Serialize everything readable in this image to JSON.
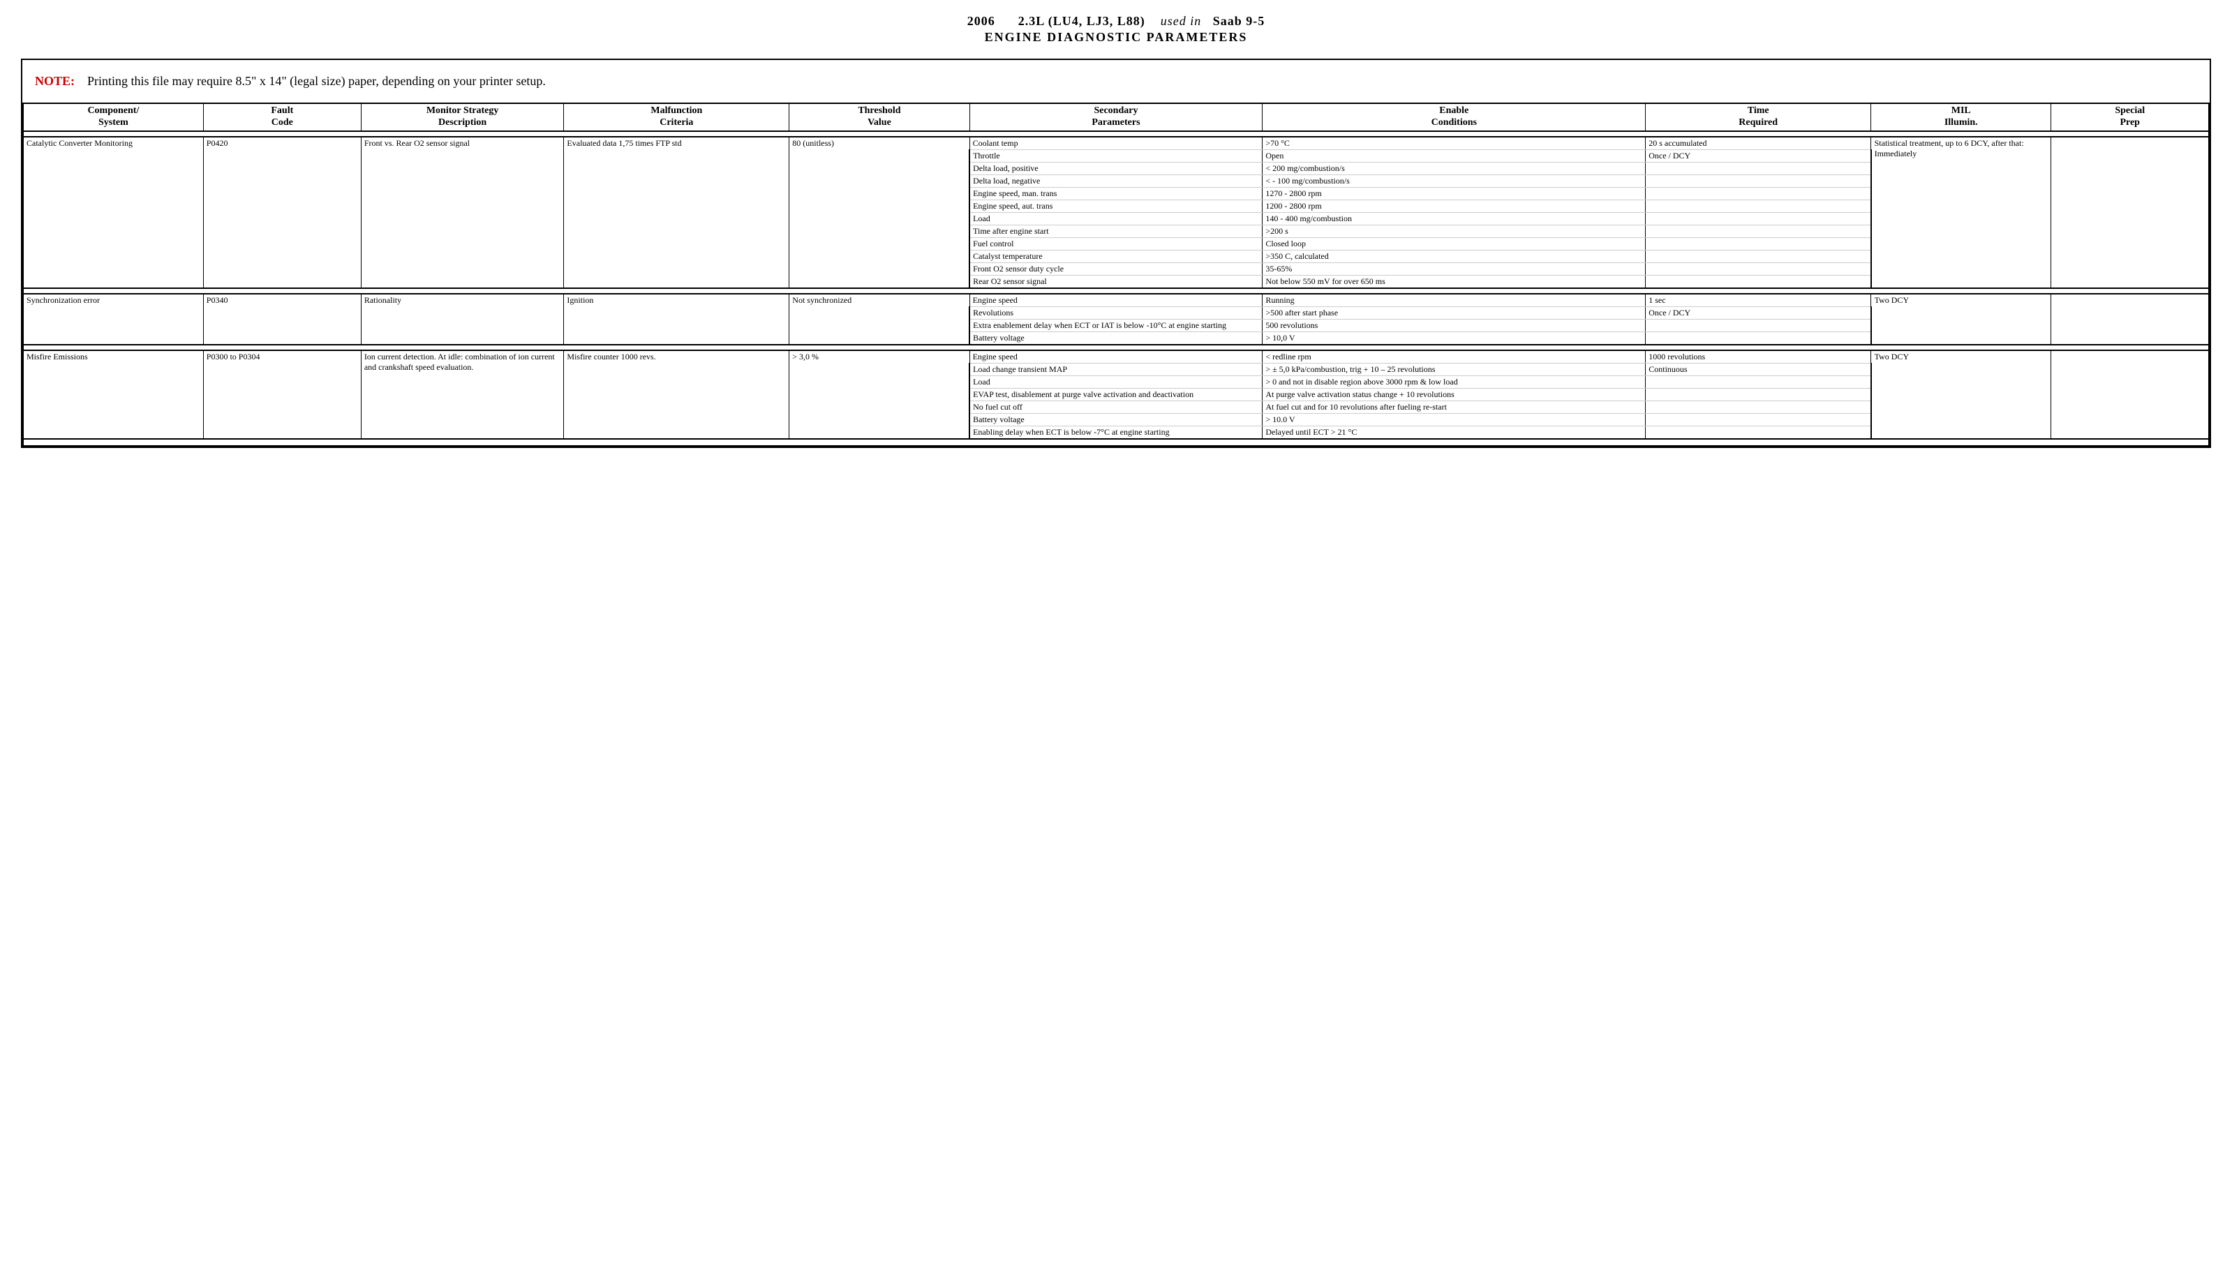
{
  "header": {
    "year": "2006",
    "engine": "2.3L  (LU4,  LJ3,  L88)",
    "used_in_label": "used in",
    "vehicle": "Saab  9-5",
    "title": "ENGINE  DIAGNOSTIC  PARAMETERS"
  },
  "note": {
    "label": "NOTE:",
    "text": "Printing this file may require  8.5\" x 14\" (legal size) paper, depending on your printer setup."
  },
  "columns": [
    "Component/\nSystem",
    "Fault\nCode",
    "Monitor Strategy\nDescription",
    "Malfunction\nCriteria",
    "Threshold\nValue",
    "Secondary\nParameters",
    "Enable\nConditions",
    "Time\nRequired",
    "MIL\nIllumin.",
    "Special\nPrep"
  ],
  "groups": [
    {
      "component": "Catalytic Converter Monitoring",
      "fault_code": "P0420",
      "strategy": "Front vs. Rear O2 sensor signal",
      "malfunction": "Evaluated data 1,75 times FTP std",
      "threshold": "80 (unitless)",
      "time_required": [
        "20 s accumulated",
        "Once / DCY"
      ],
      "mil": "Statistical treatment, up to 6 DCY, after that: Immediately",
      "special_prep": "",
      "secondary_rows": [
        {
          "param": "Coolant temp",
          "cond": ">70 °C"
        },
        {
          "param": "Throttle",
          "cond": "Open"
        },
        {
          "param": "Delta load, positive",
          "cond": "< 200 mg/combustion/s"
        },
        {
          "param": "Delta load, negative",
          "cond": "< - 100 mg/combustion/s"
        },
        {
          "param": "Engine speed, man. trans",
          "cond": "1270 - 2800 rpm"
        },
        {
          "param": "Engine speed, aut. trans",
          "cond": "1200 - 2800 rpm"
        },
        {
          "param": "Load",
          "cond": "140 - 400 mg/combustion"
        },
        {
          "param": "Time after engine start",
          "cond": ">200 s"
        },
        {
          "param": "Fuel control",
          "cond": "Closed loop"
        },
        {
          "param": "Catalyst temperature",
          "cond": ">350 C, calculated"
        },
        {
          "param": "Front O2 sensor duty cycle",
          "cond": "35-65%"
        },
        {
          "param": "Rear O2 sensor signal",
          "cond": "Not below 550 mV for over 650 ms"
        }
      ]
    },
    {
      "component": "Synchronization error",
      "fault_code": "P0340",
      "strategy": "Rationality",
      "malfunction": "Ignition",
      "threshold": "Not synchronized",
      "time_required": [
        "1 sec",
        "Once / DCY"
      ],
      "mil": "Two DCY",
      "special_prep": "",
      "secondary_rows": [
        {
          "param": "Engine speed",
          "cond": "Running"
        },
        {
          "param": "Revolutions",
          "cond": ">500 after start phase"
        },
        {
          "param": "Extra enablement delay when ECT or IAT is below -10°C at engine starting",
          "cond": "500 revolutions"
        },
        {
          "param": "Battery voltage",
          "cond": "> 10,0 V"
        }
      ]
    },
    {
      "component": "Misfire Emissions",
      "fault_code": "P0300 to P0304",
      "strategy": "Ion current detection. At idle: combination of ion current and crankshaft speed evaluation.",
      "malfunction": "Misfire counter 1000 revs.",
      "threshold": "> 3,0 %",
      "time_required": [
        "1000 revolutions",
        "Continuous"
      ],
      "mil": "Two DCY",
      "special_prep": "",
      "secondary_rows": [
        {
          "param": "Engine speed",
          "cond": "< redline rpm"
        },
        {
          "param": "Load change transient MAP",
          "cond": "> ± 5,0 kPa/combustion, trig + 10 – 25 revolutions"
        },
        {
          "param": "Load",
          "cond": "> 0 and not in disable region above 3000 rpm & low load"
        },
        {
          "param": "EVAP test, disablement at purge valve activation and deactivation",
          "cond": "At purge valve activation status change + 10 revolutions"
        },
        {
          "param": "No fuel cut off",
          "cond": "At fuel cut and for 10 revolutions after fueling re-start"
        },
        {
          "param": "Battery voltage",
          "cond": "> 10.0 V"
        },
        {
          "param": "Enabling delay when ECT  is below  -7°C at engine starting",
          "cond": "Delayed until ECT > 21 °C"
        }
      ]
    }
  ]
}
